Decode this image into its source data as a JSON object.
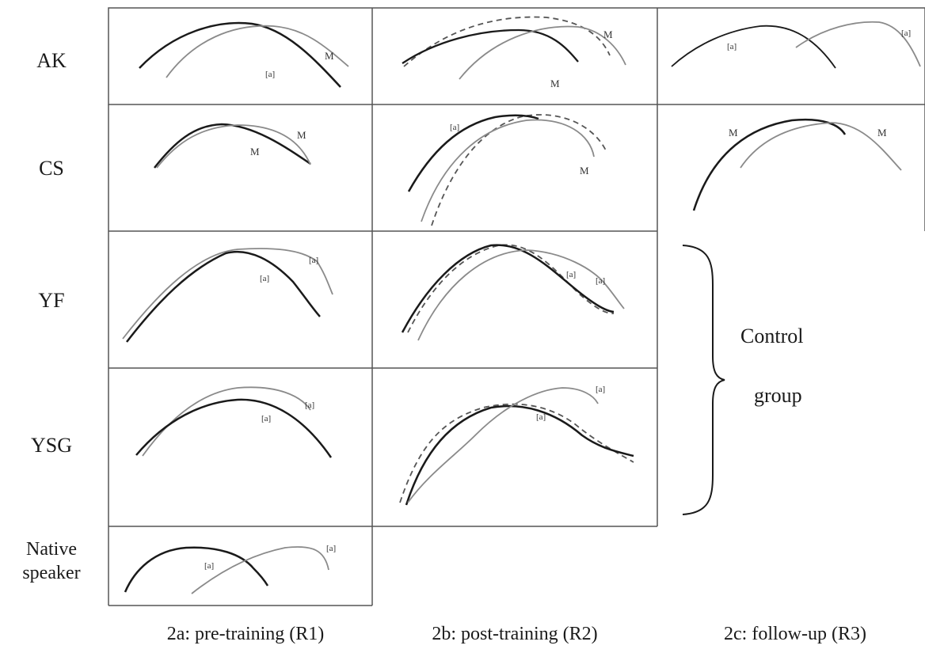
{
  "rows": [
    {
      "label": "AK"
    },
    {
      "label": "CS"
    },
    {
      "label": "YF"
    },
    {
      "label": "YSG"
    },
    {
      "label": "Native speaker",
      "line1": "Native",
      "line2": "speaker"
    }
  ],
  "columns": [
    {
      "caption": "2a: pre-training (R1)"
    },
    {
      "caption": "2b: post-training (R2)"
    },
    {
      "caption": "2c: follow-up (R3)"
    }
  ],
  "control_group": {
    "line1": "Control",
    "line2": "group"
  },
  "curve_tags": {
    "AK": {
      "R1": [
        "M",
        "[a]"
      ],
      "R2": [
        "M",
        "M"
      ],
      "R3": [
        "[a]",
        "[a]"
      ]
    },
    "CS": {
      "R1": [
        "M",
        "M"
      ],
      "R2": [
        "[a]",
        "M"
      ],
      "R3": [
        "M",
        "M"
      ]
    },
    "YF": {
      "R1": [
        "[a]",
        "[a]"
      ],
      "R2": [
        "[a]",
        "[a]"
      ]
    },
    "YSG": {
      "R1": [
        "[a]",
        "[a]"
      ],
      "R2": [
        "[a]",
        "[a]"
      ]
    },
    "Native speaker": {
      "R1": [
        "[a]",
        "[a]"
      ]
    }
  },
  "colors": {
    "line_dark": "#1a1a1a",
    "line_light": "#8a8a8a",
    "dashed": "#555555",
    "grid": "#555555"
  }
}
